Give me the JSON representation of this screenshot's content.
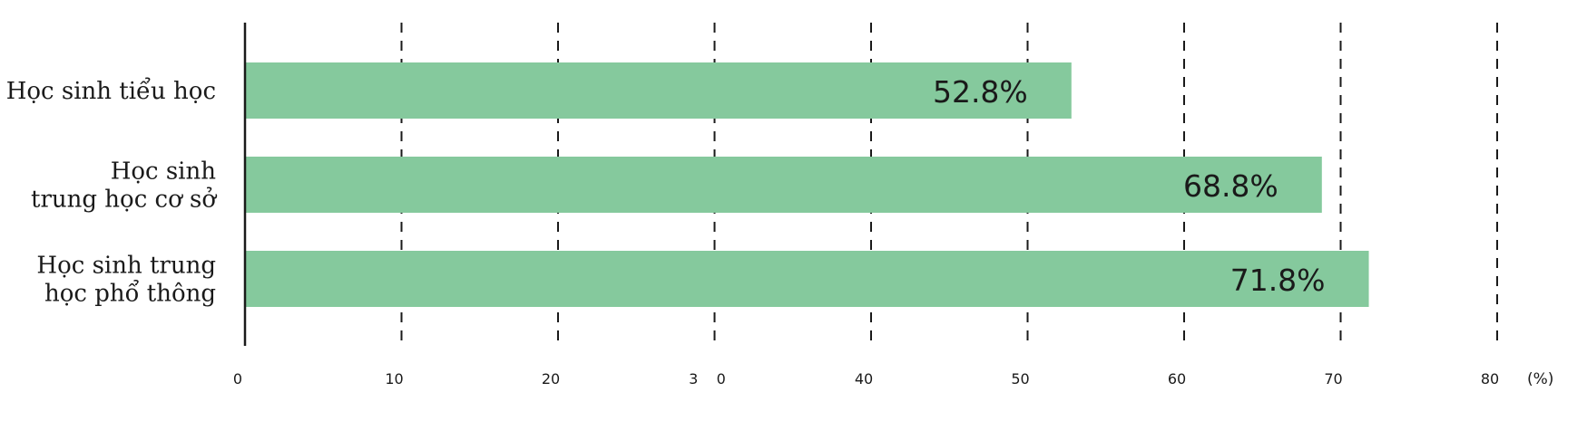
{
  "chart_data": {
    "type": "bar",
    "orientation": "horizontal",
    "categories": [
      [
        "Học sinh tiểu học"
      ],
      [
        "Học sinh",
        "trung học cơ sở"
      ],
      [
        "Học sinh trung",
        "học phổ thông"
      ]
    ],
    "values": [
      52.8,
      68.8,
      71.8
    ],
    "value_labels": [
      "52.8%",
      "68.8%",
      "71.8%"
    ],
    "x_ticks": [
      0,
      10,
      20,
      30,
      40,
      50,
      60,
      70,
      80
    ],
    "x_tick_labels": [
      "0",
      "10",
      "20",
      "3    0",
      "40",
      "50",
      "60",
      "70",
      "80"
    ],
    "xlim": [
      0,
      80
    ],
    "unit_label": "(%)",
    "grid": "vertical dashed",
    "bar_color": "#85c99d",
    "title": "",
    "xlabel": "",
    "ylabel": ""
  }
}
